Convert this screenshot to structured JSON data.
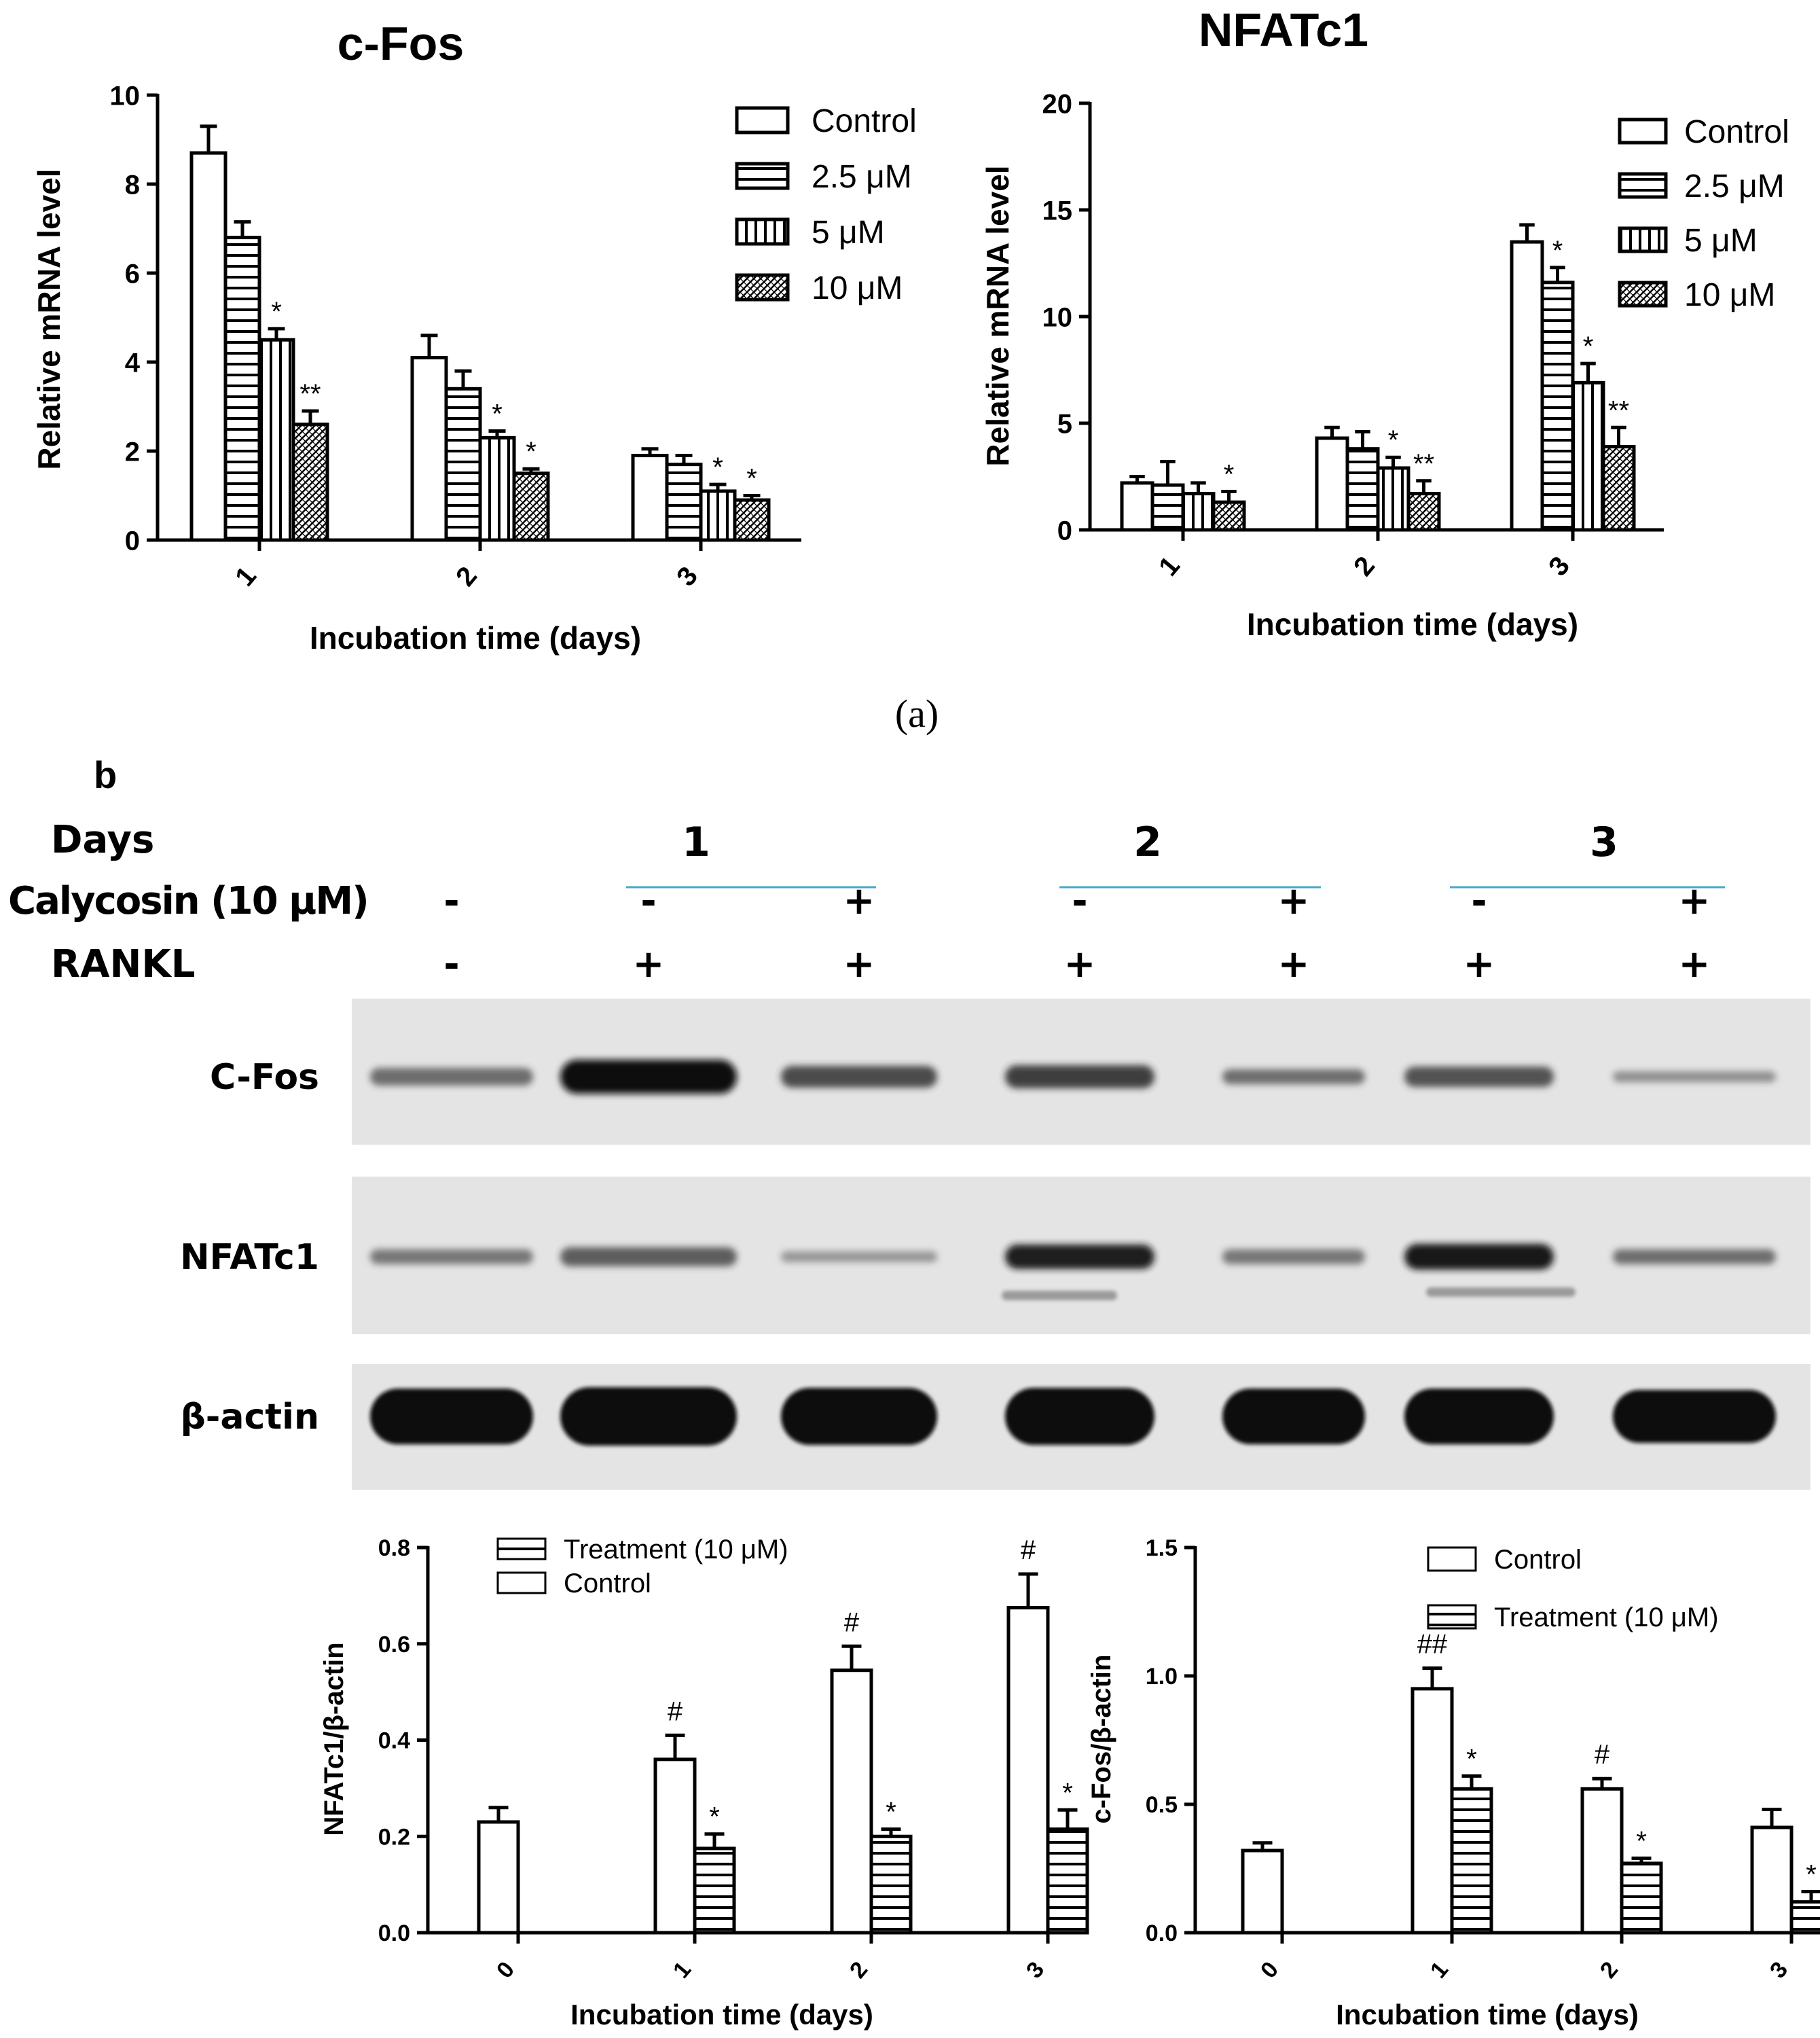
{
  "panel_a_label": "(a)",
  "panel_b_label": "b",
  "western_blot": {
    "header_days_label": "Days",
    "header_calycosin_label": "Calycosin (10 μM)",
    "header_rankl_label": "RANKL",
    "day_groups": [
      "1",
      "2",
      "3"
    ],
    "calycosin_signs": [
      "-",
      "-",
      "+",
      "-",
      "+",
      "-",
      "+"
    ],
    "rankl_signs": [
      "-",
      "+",
      "+",
      "+",
      "+",
      "+",
      "+"
    ],
    "rows": [
      {
        "label": "C-Fos",
        "intensities": [
          0.45,
          1.0,
          0.65,
          0.7,
          0.45,
          0.6,
          0.25
        ]
      },
      {
        "label": "NFATc1",
        "intensities": [
          0.4,
          0.55,
          0.2,
          0.85,
          0.4,
          0.9,
          0.45
        ]
      },
      {
        "label": "β-actin",
        "intensities": [
          1.0,
          1.0,
          1.0,
          1.0,
          1.0,
          1.0,
          1.0
        ]
      }
    ]
  },
  "chart_data": [
    {
      "id": "a-cfos",
      "type": "bar",
      "title": "c-Fos",
      "xlabel": "Incubation time (days)",
      "ylabel": "Relative mRNA level",
      "categories": [
        "1",
        "2",
        "3"
      ],
      "ylim": [
        0,
        10
      ],
      "yticks": [
        "0",
        "2",
        "4",
        "6",
        "8",
        "10"
      ],
      "legend_position": "top-right",
      "series": [
        {
          "name": "Control",
          "pattern": "open",
          "values": [
            8.7,
            4.1,
            1.9
          ],
          "errors": [
            0.6,
            0.5,
            0.15
          ],
          "sig": [
            "",
            "",
            ""
          ]
        },
        {
          "name": "2.5 μM",
          "pattern": "hstripe",
          "values": [
            6.8,
            3.4,
            1.7
          ],
          "errors": [
            0.35,
            0.4,
            0.2
          ],
          "sig": [
            "",
            "",
            ""
          ]
        },
        {
          "name": "5 μM",
          "pattern": "vstripe",
          "values": [
            4.5,
            2.3,
            1.1
          ],
          "errors": [
            0.25,
            0.15,
            0.15
          ],
          "sig": [
            "*",
            "*",
            "*"
          ]
        },
        {
          "name": "10 μM",
          "pattern": "hatch",
          "values": [
            2.6,
            1.5,
            0.9
          ],
          "errors": [
            0.3,
            0.1,
            0.1
          ],
          "sig": [
            "**",
            "*",
            "*"
          ]
        }
      ]
    },
    {
      "id": "a-nfatc1",
      "type": "bar",
      "title": "NFATc1",
      "xlabel": "Incubation time (days)",
      "ylabel": "Relative mRNA level",
      "categories": [
        "1",
        "2",
        "3"
      ],
      "ylim": [
        0,
        20
      ],
      "yticks": [
        "0",
        "5",
        "10",
        "15",
        "20"
      ],
      "legend_position": "top-right",
      "series": [
        {
          "name": "Control",
          "pattern": "open",
          "values": [
            2.2,
            4.3,
            13.5
          ],
          "errors": [
            0.3,
            0.5,
            0.8
          ],
          "sig": [
            "",
            "",
            ""
          ]
        },
        {
          "name": "2.5 μM",
          "pattern": "hstripe",
          "values": [
            2.1,
            3.8,
            11.6
          ],
          "errors": [
            1.1,
            0.8,
            0.7
          ],
          "sig": [
            "",
            "",
            "*"
          ]
        },
        {
          "name": "5 μM",
          "pattern": "vstripe",
          "values": [
            1.7,
            2.9,
            6.9
          ],
          "errors": [
            0.5,
            0.5,
            0.9
          ],
          "sig": [
            "",
            "*",
            "*"
          ]
        },
        {
          "name": "10 μM",
          "pattern": "hatch",
          "values": [
            1.3,
            1.7,
            3.9
          ],
          "errors": [
            0.5,
            0.6,
            0.9
          ],
          "sig": [
            "*",
            "**",
            "**"
          ]
        }
      ]
    },
    {
      "id": "b-nfatc1",
      "type": "bar",
      "title": "",
      "xlabel": "Incubation time (days)",
      "ylabel": "NFATc1/β-actin",
      "categories": [
        "0",
        "1",
        "2",
        "3"
      ],
      "ylim": [
        0,
        0.8
      ],
      "yticks": [
        "0.0",
        "0.2",
        "0.4",
        "0.6",
        "0.8"
      ],
      "legend_position": "top",
      "legend_order": [
        1,
        0
      ],
      "series": [
        {
          "name": "Control",
          "pattern": "open",
          "values": [
            0.23,
            0.36,
            0.545,
            0.675
          ],
          "errors": [
            0.03,
            0.05,
            0.05,
            0.07
          ],
          "sig": [
            "",
            "#",
            "#",
            "#"
          ]
        },
        {
          "name": "Treatment (10 μM)",
          "pattern": "hstripe",
          "values": [
            null,
            0.175,
            0.2,
            0.215
          ],
          "errors": [
            null,
            0.03,
            0.015,
            0.04
          ],
          "sig": [
            "",
            "*",
            "*",
            "*"
          ]
        }
      ]
    },
    {
      "id": "b-cfos",
      "type": "bar",
      "title": "",
      "xlabel": "Incubation time (days)",
      "ylabel": "c-Fos/β-actin",
      "categories": [
        "0",
        "1",
        "2",
        "3"
      ],
      "ylim": [
        0,
        1.5
      ],
      "yticks": [
        "0.0",
        "0.5",
        "1.0",
        "1.5"
      ],
      "legend_position": "top-right",
      "legend_order": [
        0,
        1
      ],
      "series": [
        {
          "name": "Control",
          "pattern": "open",
          "values": [
            0.32,
            0.95,
            0.56,
            0.41
          ],
          "errors": [
            0.03,
            0.08,
            0.04,
            0.07
          ],
          "sig": [
            "",
            "##",
            "#",
            ""
          ]
        },
        {
          "name": "Treatment (10 μM)",
          "pattern": "hstripe",
          "values": [
            null,
            0.56,
            0.27,
            0.12
          ],
          "errors": [
            null,
            0.05,
            0.02,
            0.04
          ],
          "sig": [
            "",
            "*",
            "*",
            "*"
          ]
        }
      ]
    }
  ]
}
